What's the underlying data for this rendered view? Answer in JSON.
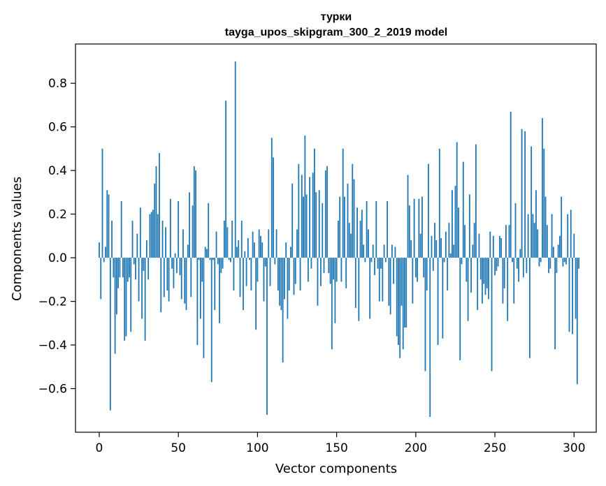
{
  "chart_data": {
    "type": "bar",
    "title": "турки",
    "subtitle": "tayga_upos_skipgram_300_2_2019 model",
    "xlabel": "Vector components",
    "ylabel": "Components values",
    "xlim": [
      -15,
      314
    ],
    "ylim": [
      -0.8,
      0.98
    ],
    "xticks": [
      0,
      50,
      100,
      150,
      200,
      250,
      300
    ],
    "yticks": [
      -0.6,
      -0.4,
      -0.2,
      0.0,
      0.2,
      0.4,
      0.6,
      0.8
    ],
    "xtick_labels": [
      "0",
      "50",
      "100",
      "150",
      "200",
      "250",
      "300"
    ],
    "ytick_labels": [
      "−0.6",
      "−0.4",
      "−0.2",
      "0.0",
      "0.2",
      "0.4",
      "0.6",
      "0.8"
    ],
    "grid": false,
    "bar_color": "#1f77b4",
    "values": [
      0.07,
      -0.19,
      0.5,
      -0.02,
      0.05,
      0.31,
      0.29,
      -0.7,
      0.17,
      -0.09,
      -0.44,
      -0.26,
      -0.14,
      -0.09,
      0.26,
      -0.09,
      -0.38,
      -0.36,
      -0.11,
      -0.09,
      -0.34,
      0.17,
      -0.03,
      -0.1,
      0.11,
      -0.2,
      0.23,
      -0.28,
      -0.06,
      -0.38,
      0.08,
      -0.1,
      0.2,
      0.21,
      0.22,
      0.34,
      0.42,
      0.2,
      0.48,
      -0.25,
      0.17,
      -0.18,
      0.14,
      -0.15,
      -0.2,
      0.27,
      -0.05,
      -0.14,
      0.02,
      -0.07,
      0.26,
      -0.08,
      -0.19,
      0.13,
      -0.21,
      -0.24,
      0.06,
      0.3,
      -0.18,
      0.24,
      0.42,
      0.4,
      -0.4,
      -0.01,
      -0.28,
      -0.11,
      -0.46,
      0.05,
      0.04,
      0.25,
      -0.01,
      -0.57,
      -0.01,
      -0.24,
      0.12,
      -0.03,
      -0.3,
      -0.07,
      -0.05,
      0.17,
      0.72,
      0.14,
      -0.01,
      -0.02,
      0.17,
      -0.15,
      0.9,
      0.05,
      0.08,
      -0.18,
      0.17,
      -0.24,
      0.03,
      -0.13,
      0.09,
      -0.01,
      -0.15,
      0.12,
      0.07,
      -0.33,
      -0.11,
      0.13,
      0.1,
      0.07,
      -0.2,
      -0.04,
      -0.72,
      0.13,
      -0.13,
      0.55,
      0.46,
      -0.03,
      0.13,
      -0.15,
      -0.22,
      -0.24,
      -0.48,
      -0.19,
      0.07,
      -0.28,
      -0.15,
      0.05,
      0.34,
      -0.17,
      -0.12,
      0.13,
      0.43,
      -0.15,
      0.38,
      0.28,
      0.56,
      0.29,
      -0.11,
      0.37,
      -0.05,
      0.39,
      0.5,
      0.3,
      -0.22,
      0.31,
      -0.13,
      0.25,
      -0.07,
      0.4,
      0.42,
      -0.07,
      -0.12,
      -0.42,
      -0.1,
      -0.3,
      -0.11,
      0.17,
      0.28,
      -0.11,
      0.5,
      0.28,
      -0.14,
      0.34,
      0.16,
      0.11,
      0.43,
      0.36,
      -0.23,
      0.23,
      -0.29,
      0.17,
      0.22,
      0.06,
      -0.02,
      0.26,
      0.13,
      -0.28,
      -0.02,
      0.06,
      -0.08,
      0.26,
      -0.05,
      -0.2,
      -0.05,
      -0.2,
      0.06,
      -0.02,
      0.26,
      -0.22,
      -0.26,
      0.06,
      -0.12,
      0.05,
      -0.36,
      -0.4,
      -0.46,
      -0.22,
      -0.42,
      -0.32,
      -0.32,
      0.38,
      0.24,
      0.08,
      -0.21,
      0.27,
      -0.09,
      -0.11,
      0.27,
      0.11,
      0.28,
      -0.09,
      -0.52,
      -0.15,
      0.43,
      -0.73,
      0.1,
      -0.06,
      0.16,
      0.08,
      -0.4,
      0.5,
      0.09,
      -0.37,
      -0.02,
      0.12,
      -0.15,
      0.16,
      0.02,
      0.31,
      0.06,
      0.33,
      0.53,
      0.23,
      -0.47,
      -0.03,
      0.44,
      0.15,
      -0.11,
      -0.29,
      0.29,
      -0.16,
      0.06,
      0.16,
      0.52,
      -0.24,
      0.11,
      -0.1,
      -0.21,
      -0.12,
      -0.17,
      -0.14,
      -0.19,
      0.12,
      -0.52,
      0.1,
      -0.08,
      -0.06,
      -0.04,
      0.1,
      0.09,
      -0.21,
      -0.14,
      0.15,
      -0.29,
      0.15,
      0.67,
      -0.02,
      -0.21,
      0.25,
      -0.05,
      -0.11,
      0.04,
      0.59,
      -0.09,
      0.58,
      -0.07,
      0.2,
      -0.46,
      0.51,
      0.2,
      0.16,
      0.31,
      0.13,
      -0.04,
      -0.02,
      0.64,
      0.5,
      0.28,
      0.15,
      -0.07,
      -0.05,
      0.2,
      0.05,
      -0.42,
      -0.07,
      0.06,
      0.1,
      0.28,
      -0.04,
      -0.02,
      -0.03,
      0.2,
      -0.34,
      0.22,
      -0.35,
      0.11,
      -0.28,
      -0.58,
      -0.05
    ]
  }
}
